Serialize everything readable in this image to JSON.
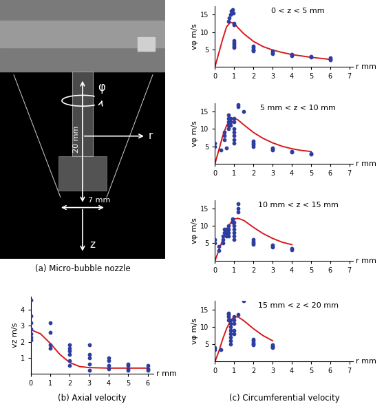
{
  "nozzle": {
    "caption": "(a) Micro-bubble nozzle",
    "labels": {
      "phi": "φ",
      "height": "20 mm",
      "r": "r",
      "width": "7 mm",
      "z": "z"
    }
  },
  "captions": {
    "axial": "(b) Axial velocity",
    "circumferential": "(c) Circumferential velocity"
  },
  "chart_data": [
    {
      "type": "scatter",
      "group": "axial",
      "xlabel": "r mm",
      "ylabel": "vz m/s",
      "xlim": [
        0,
        6.3
      ],
      "ylim": [
        0,
        4.8
      ],
      "xticks": [
        0,
        1,
        2,
        3,
        4,
        5,
        6
      ],
      "yticks": [
        1,
        2,
        3,
        4
      ],
      "series": [
        {
          "type": "scatter",
          "color": "#2e3d9e",
          "marker": "o",
          "x": [
            0,
            0,
            0,
            0,
            0,
            0,
            0,
            1,
            1,
            1,
            1,
            2,
            2,
            2,
            2,
            2,
            2,
            3,
            3,
            3,
            3,
            3,
            4,
            4,
            4,
            4,
            5,
            5,
            5,
            5,
            6,
            6,
            6
          ],
          "values": [
            4.6,
            3.6,
            3.2,
            2.8,
            2.5,
            2.3,
            2.1,
            3.2,
            2.6,
            1.8,
            1.6,
            1.8,
            1.6,
            1.4,
            1.2,
            0.8,
            0.5,
            1.8,
            1.2,
            1.0,
            0.6,
            0.2,
            1.0,
            0.8,
            0.5,
            0.3,
            0.6,
            0.5,
            0.3,
            0.2,
            0.5,
            0.3,
            0.2
          ]
        },
        {
          "type": "line",
          "color": "#d7191c",
          "line_style": "solid",
          "x": [
            0,
            0.5,
            1,
            1.5,
            2,
            2.5,
            3,
            4,
            5,
            6
          ],
          "values": [
            2.75,
            2.5,
            1.9,
            1.2,
            0.7,
            0.45,
            0.38,
            0.35,
            0.35,
            0.35
          ]
        }
      ]
    },
    {
      "type": "scatter",
      "group": "circumferential",
      "title": "0 < z < 5 mm",
      "xlabel": "r mm",
      "ylabel": "vφ m/s",
      "xlim": [
        0,
        7.2
      ],
      "ylim": [
        0,
        17.5
      ],
      "xticks": [
        0,
        1,
        2,
        3,
        4,
        5,
        6,
        7
      ],
      "yticks": [
        5,
        10,
        15
      ],
      "series": [
        {
          "type": "scatter",
          "color": "#2e3d9e",
          "marker": "o",
          "x": [
            0.7,
            0.75,
            0.8,
            0.85,
            0.9,
            0.95,
            1,
            1,
            1,
            1,
            1,
            1,
            1,
            2,
            2,
            2,
            2,
            2,
            3,
            3,
            3,
            4,
            4,
            4,
            5,
            5,
            6,
            6,
            6
          ],
          "values": [
            13,
            14,
            15,
            16,
            16.5,
            15.5,
            12.5,
            12,
            7.5,
            7,
            6.5,
            6,
            5.5,
            6,
            5.5,
            5,
            4.8,
            4.5,
            4.5,
            4,
            3.8,
            3.5,
            3.3,
            3.1,
            3.0,
            2.7,
            2.5,
            2.2,
            2.0
          ]
        },
        {
          "type": "line",
          "color": "#d7191c",
          "line_style": "solid",
          "x": [
            0,
            0.2,
            0.4,
            0.6,
            0.8,
            1.0,
            1.2,
            1.5,
            2,
            2.5,
            3,
            3.5,
            4,
            5,
            6
          ],
          "values": [
            0,
            4,
            8,
            11.5,
            12.8,
            12.5,
            11.2,
            9.5,
            7.3,
            5.8,
            4.8,
            4.1,
            3.5,
            2.7,
            2.1
          ]
        }
      ]
    },
    {
      "type": "scatter",
      "group": "circumferential",
      "title": "5 mm < z < 10 mm",
      "xlabel": "r mm",
      "ylabel": "vφ m/s",
      "xlim": [
        0,
        7.2
      ],
      "ylim": [
        0,
        17.5
      ],
      "xticks": [
        0,
        1,
        2,
        3,
        4,
        5,
        6,
        7
      ],
      "yticks": [
        5,
        10,
        15
      ],
      "series": [
        {
          "type": "scatter",
          "color": "#2e3d9e",
          "marker": "o",
          "x": [
            0,
            0,
            0.3,
            0.5,
            0.5,
            0.5,
            0.6,
            0.7,
            0.7,
            0.7,
            0.7,
            0.7,
            0.8,
            0.8,
            0.8,
            1,
            1,
            1,
            1,
            1,
            1,
            1,
            1.2,
            1.2,
            1.5,
            2,
            2,
            2,
            2,
            3,
            3,
            3,
            4,
            4,
            5,
            5
          ],
          "values": [
            5,
            6,
            4,
            7,
            8,
            9,
            4.5,
            10,
            11,
            12,
            13,
            14,
            13,
            12,
            11,
            6,
            7,
            8,
            9,
            10,
            12,
            13,
            16.5,
            17,
            15,
            6.5,
            6,
            5.5,
            5,
            4.5,
            4.2,
            4,
            3.5,
            3.3,
            3,
            2.8
          ]
        },
        {
          "type": "line",
          "color": "#d7191c",
          "line_style": "solid",
          "x": [
            0,
            0.2,
            0.4,
            0.6,
            0.8,
            1.0,
            1.2,
            1.5,
            2,
            2.5,
            3,
            3.5,
            4,
            4.5,
            5
          ],
          "values": [
            0,
            4,
            8,
            11,
            12.7,
            13.1,
            12.6,
            11.2,
            9,
            7.3,
            6,
            5,
            4.3,
            3.8,
            3.5
          ]
        }
      ]
    },
    {
      "type": "scatter",
      "group": "circumferential",
      "title": "10 mm < z < 15 mm",
      "xlabel": "r mm",
      "ylabel": "vφ m/s",
      "xlim": [
        0,
        7.2
      ],
      "ylim": [
        0,
        17.5
      ],
      "xticks": [
        0,
        1,
        2,
        3,
        4,
        5,
        6,
        7
      ],
      "yticks": [
        5,
        10,
        15
      ],
      "series": [
        {
          "type": "scatter",
          "color": "#2e3d9e",
          "marker": "o",
          "x": [
            0,
            0,
            0.2,
            0.2,
            0.4,
            0.4,
            0.4,
            0.5,
            0.5,
            0.6,
            0.6,
            0.6,
            0.7,
            0.7,
            0.7,
            0.7,
            0.9,
            0.9,
            0.9,
            1,
            1,
            1,
            1,
            1,
            1,
            1.2,
            1.2,
            1.2,
            2,
            2,
            2,
            2,
            3,
            3,
            3,
            4,
            4
          ],
          "values": [
            5,
            6,
            3,
            4,
            5,
            6,
            7,
            8,
            9,
            7,
            8,
            9,
            7,
            8,
            9,
            10,
            11,
            11.5,
            12,
            6,
            7,
            8,
            9,
            10,
            11,
            14,
            15,
            16.5,
            6,
            5.5,
            5,
            4.7,
            4.5,
            4,
            3.8,
            3.5,
            3.2
          ]
        },
        {
          "type": "line",
          "color": "#d7191c",
          "line_style": "solid",
          "x": [
            0,
            0.2,
            0.4,
            0.6,
            0.8,
            1.0,
            1.2,
            1.5,
            2,
            2.5,
            3,
            3.5,
            4
          ],
          "values": [
            0,
            3,
            6,
            8.8,
            10.8,
            12,
            12.2,
            11.6,
            9.6,
            7.8,
            6.4,
            5.3,
            4.6
          ]
        }
      ]
    },
    {
      "type": "scatter",
      "group": "circumferential",
      "title": "15 mm < z < 20 mm",
      "xlabel": "r mm",
      "ylabel": "vφ m/s",
      "xlim": [
        0,
        7.2
      ],
      "ylim": [
        0,
        17.5
      ],
      "xticks": [
        0,
        1,
        2,
        3,
        4,
        5,
        6,
        7
      ],
      "yticks": [
        5,
        10,
        15
      ],
      "series": [
        {
          "type": "scatter",
          "color": "#2e3d9e",
          "marker": "o",
          "x": [
            0,
            0,
            0.3,
            0.7,
            0.7,
            0.7,
            0.7,
            0.8,
            0.8,
            0.8,
            0.8,
            0.8,
            0.8,
            0.8,
            0.8,
            1,
            1,
            1,
            1,
            1,
            1.2,
            1.5,
            2,
            2,
            2,
            2,
            2,
            3,
            3,
            3,
            3
          ],
          "values": [
            3.5,
            4,
            3.5,
            12,
            13,
            14,
            13.5,
            5,
            6,
            7,
            8,
            9,
            10,
            11,
            12,
            13,
            12,
            11,
            9,
            8,
            13.5,
            17.5,
            6.5,
            6,
            5.5,
            5,
            4.8,
            4.8,
            4.5,
            4.2,
            4
          ]
        },
        {
          "type": "line",
          "color": "#d7191c",
          "line_style": "solid",
          "x": [
            0,
            0.2,
            0.4,
            0.6,
            0.8,
            1.0,
            1.2,
            1.5,
            2,
            2.5,
            3
          ],
          "values": [
            0,
            3,
            6.5,
            9.5,
            11.8,
            12.9,
            12.9,
            11.8,
            9.5,
            7.5,
            6
          ]
        }
      ]
    }
  ]
}
